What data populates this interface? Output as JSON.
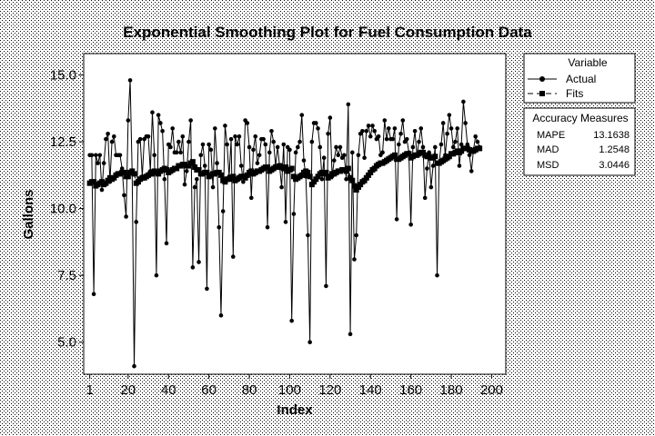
{
  "chart_data": {
    "type": "line",
    "title": "Exponential Smoothing Plot for Fuel Consumption Data",
    "xlabel": "Index",
    "ylabel": "Gallons",
    "xlim": [
      -2,
      207
    ],
    "ylim": [
      3.8,
      15.8
    ],
    "x_ticks": [
      "1",
      "20",
      "40",
      "60",
      "80",
      "100",
      "120",
      "140",
      "160",
      "180",
      "200"
    ],
    "y_ticks": [
      "5.0",
      "7.5",
      "10.0",
      "12.5",
      "15.0"
    ],
    "grid": false,
    "legend": {
      "title": "Variable",
      "placement": "right-top",
      "entries": [
        "Actual",
        "Fits"
      ]
    },
    "accuracy": {
      "title": "Accuracy Measures",
      "rows": [
        {
          "label": "MAPE",
          "value": "13.1638"
        },
        {
          "label": "MAD",
          "value": "1.2548"
        },
        {
          "label": "MSD",
          "value": "3.0446"
        }
      ]
    },
    "series": [
      {
        "name": "Actual",
        "marker": "circle",
        "line": "solid",
        "values": [
          12.0,
          12.0,
          6.8,
          12.0,
          11.7,
          12.0,
          10.7,
          11.7,
          12.6,
          12.8,
          11.0,
          12.5,
          12.7,
          12.0,
          12.0,
          12.0,
          11.5,
          10.5,
          9.7,
          13.3,
          14.8,
          11.3,
          4.1,
          9.5,
          12.5,
          12.6,
          11.2,
          12.6,
          12.7,
          12.7,
          11.4,
          13.6,
          12.0,
          7.5,
          13.5,
          13.2,
          12.9,
          11.1,
          8.7,
          12.4,
          12.3,
          13.0,
          12.1,
          12.1,
          12.5,
          12.1,
          12.7,
          10.9,
          11.4,
          12.5,
          13.3,
          7.8,
          10.8,
          11.1,
          8.0,
          12.0,
          12.4,
          11.6,
          7.0,
          12.4,
          12.2,
          10.8,
          13.0,
          11.7,
          9.3,
          6.0,
          9.9,
          13.1,
          12.4,
          11.2,
          12.6,
          8.2,
          12.7,
          12.4,
          12.7,
          11.6,
          11.0,
          13.3,
          13.2,
          12.3,
          10.4,
          12.2,
          12.7,
          11.7,
          12.0,
          12.6,
          12.6,
          12.4,
          9.3,
          12.1,
          12.9,
          12.5,
          11.6,
          12.3,
          11.6,
          10.8,
          12.4,
          9.5,
          12.3,
          12.2,
          5.8,
          9.8,
          12.1,
          12.3,
          12.5,
          13.5,
          11.8,
          11.2,
          9.0,
          5.0,
          12.5,
          13.2,
          13.2,
          13.0,
          12.3,
          11.1,
          11.9,
          7.1,
          12.8,
          13.4,
          11.2,
          11.8,
          12.3,
          12.0,
          12.3,
          11.9,
          12.0,
          11.1,
          13.9,
          5.3,
          12.1,
          8.1,
          9.0,
          12.0,
          12.8,
          12.9,
          11.9,
          12.9,
          13.1,
          12.7,
          13.1,
          12.9,
          12.6,
          12.7,
          12.0,
          12.1,
          13.3,
          12.6,
          13.0,
          12.6,
          12.6,
          13.0,
          9.6,
          12.4,
          12.8,
          13.3,
          12.5,
          12.6,
          12.1,
          9.4,
          12.3,
          12.9,
          12.0,
          12.5,
          13.0,
          12.3,
          10.4,
          11.5,
          12.1,
          10.8,
          11.6,
          12.3,
          7.5,
          11.7,
          12.4,
          13.2,
          12.0,
          12.8,
          13.5,
          13.0,
          12.3,
          12.5,
          13.0,
          11.6,
          12.4,
          14.0,
          13.2,
          12.4,
          12.0,
          11.4,
          12.2,
          12.7,
          12.5,
          12.3
        ]
      },
      {
        "name": "Fits",
        "marker": "square",
        "line": "dashed",
        "values": [
          10.95,
          11.0,
          11.0,
          10.85,
          10.9,
          10.95,
          11.0,
          10.9,
          10.95,
          11.05,
          11.15,
          11.1,
          11.15,
          11.25,
          11.3,
          11.3,
          11.35,
          11.35,
          11.2,
          11.2,
          11.35,
          11.4,
          11.3,
          10.95,
          11.0,
          11.1,
          11.15,
          11.15,
          11.2,
          11.25,
          11.3,
          11.3,
          11.4,
          11.35,
          11.3,
          11.4,
          11.45,
          11.5,
          11.45,
          11.35,
          11.4,
          11.45,
          11.5,
          11.5,
          11.6,
          11.6,
          11.65,
          11.65,
          11.6,
          11.6,
          11.7,
          11.75,
          11.55,
          11.45,
          11.45,
          11.3,
          11.3,
          11.35,
          11.35,
          11.2,
          11.25,
          11.3,
          11.3,
          11.35,
          11.35,
          11.25,
          11.05,
          11.0,
          11.1,
          11.1,
          11.15,
          11.2,
          11.05,
          11.1,
          11.15,
          11.2,
          11.2,
          11.15,
          11.25,
          11.35,
          11.4,
          11.3,
          11.35,
          11.4,
          11.4,
          11.45,
          11.5,
          11.55,
          11.55,
          11.4,
          11.45,
          11.5,
          11.55,
          11.55,
          11.6,
          11.55,
          11.5,
          11.55,
          11.4,
          11.45,
          11.5,
          11.2,
          11.1,
          11.15,
          11.2,
          11.25,
          11.35,
          11.4,
          11.35,
          11.2,
          10.9,
          11.0,
          11.1,
          11.2,
          11.3,
          11.35,
          11.3,
          11.35,
          11.15,
          11.2,
          11.3,
          11.3,
          11.35,
          11.4,
          11.4,
          11.45,
          11.45,
          11.4,
          11.5,
          11.15,
          11.05,
          10.85,
          10.7,
          10.8,
          10.9,
          11.0,
          11.05,
          11.15,
          11.25,
          11.35,
          11.45,
          11.5,
          11.6,
          11.65,
          11.7,
          11.7,
          11.75,
          11.8,
          11.85,
          11.9,
          11.95,
          12.0,
          11.85,
          11.85,
          11.9,
          11.95,
          12.0,
          12.05,
          12.05,
          11.9,
          11.95,
          12.0,
          12.0,
          12.05,
          12.1,
          12.1,
          12.0,
          11.95,
          11.95,
          11.9,
          11.9,
          11.95,
          11.7,
          11.7,
          11.75,
          11.8,
          11.85,
          11.9,
          11.95,
          12.05,
          12.05,
          12.1,
          12.15,
          12.1,
          12.15,
          12.25,
          12.25,
          12.25,
          12.2,
          12.15,
          12.15,
          12.2,
          12.25,
          12.25
        ]
      }
    ]
  }
}
